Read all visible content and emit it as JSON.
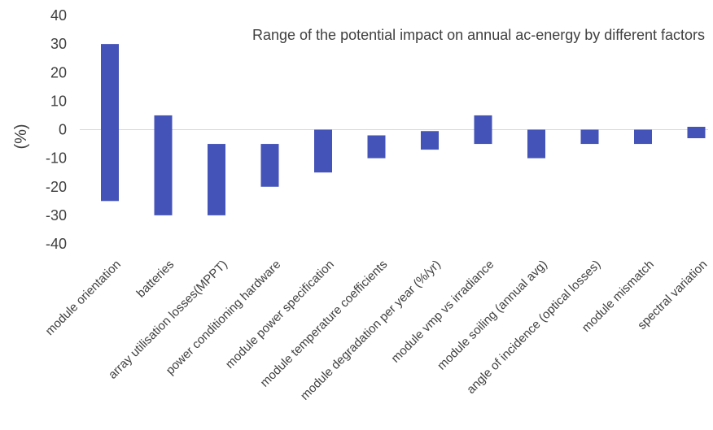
{
  "chart_data": {
    "type": "bar",
    "title": "Range of the potential impact on annual ac-energy by different factors",
    "xlabel": "",
    "ylabel": "(%)",
    "ylim": [
      -40,
      40
    ],
    "yticks": [
      40,
      30,
      20,
      10,
      0,
      -10,
      -20,
      -30,
      -40
    ],
    "grid": false,
    "bar_color": "#4453B8",
    "categories": [
      "module orientation",
      "batteries",
      "array utilisation losses(MPPT)",
      "power conditioning hardware",
      "module power specification",
      "module temperature coefficients",
      "module degradation per year (%/yr)",
      "module vmp vs irradiance",
      "module soiling (annual avg)",
      "angle of incidence (optical losses)",
      "module mismatch",
      "spectral variation"
    ],
    "series": [
      {
        "low": [
          -25,
          -30,
          -30,
          -20,
          -15,
          -10,
          -7,
          -5,
          -10,
          -5,
          -5,
          -3
        ]
      },
      {
        "high": [
          30,
          5,
          -5,
          -5,
          0,
          -2,
          -0.5,
          5,
          0,
          0,
          0,
          1
        ]
      }
    ]
  }
}
